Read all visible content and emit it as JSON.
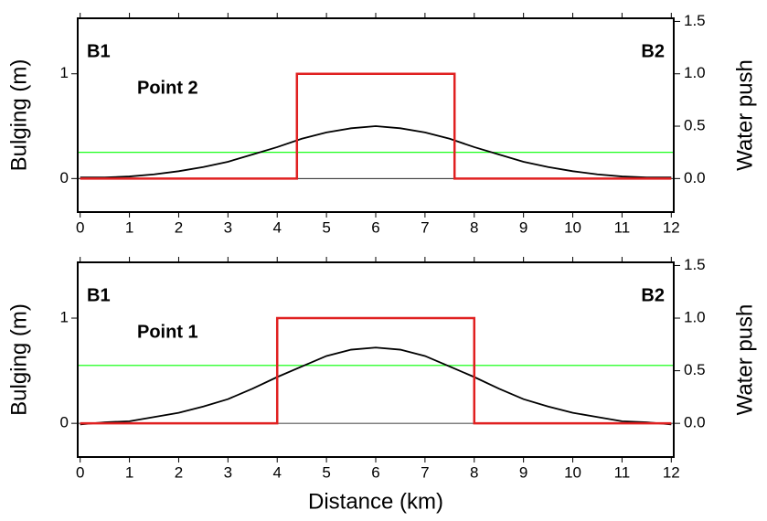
{
  "chart_data": [
    {
      "type": "line",
      "ylabel": "Bulging (m)",
      "y2label": "Water push",
      "annotations": [
        "B1",
        "B2",
        "Point 2"
      ],
      "xlim": [
        -0.05,
        12.05
      ],
      "xticks": [
        0,
        1,
        2,
        3,
        4,
        5,
        6,
        7,
        8,
        9,
        10,
        11,
        12
      ],
      "ylim": [
        -0.32,
        1.53
      ],
      "yticks": [
        0,
        1
      ],
      "y2lim": [
        -0.32,
        1.53
      ],
      "y2ticks": [
        {
          "value": 0,
          "label": "0.0"
        },
        {
          "value": 0.5,
          "label": "0.5"
        },
        {
          "value": 1,
          "label": "1.0"
        },
        {
          "value": 1.5,
          "label": "1.5"
        }
      ],
      "hline": {
        "value": 0.25,
        "color": "#00ff00",
        "axis": "y2"
      },
      "series": [
        {
          "color": "#000000",
          "x": [
            0,
            0.5,
            1,
            1.5,
            2,
            2.5,
            3,
            3.5,
            4,
            4.5,
            5,
            5.5,
            6,
            6.5,
            7,
            7.5,
            8,
            8.5,
            9,
            9.5,
            10,
            10.5,
            11,
            11.5,
            12
          ],
          "values": [
            0.01,
            0.01,
            0.02,
            0.04,
            0.07,
            0.11,
            0.16,
            0.23,
            0.3,
            0.38,
            0.44,
            0.48,
            0.5,
            0.48,
            0.44,
            0.38,
            0.3,
            0.23,
            0.16,
            0.11,
            0.07,
            0.04,
            0.02,
            0.01,
            0.01
          ]
        },
        {
          "color": "#e02020",
          "axis": "y2",
          "x": [
            0,
            4.4,
            4.4,
            7.6,
            7.6,
            12
          ],
          "values": [
            0,
            0,
            1,
            1,
            0,
            0
          ]
        }
      ]
    },
    {
      "type": "line",
      "ylabel": "Bulging (m)",
      "y2label": "Water push",
      "xlabel": "Distance (km)",
      "annotations": [
        "B1",
        "B2",
        "Point 1"
      ],
      "xlim": [
        -0.05,
        12.05
      ],
      "xticks": [
        0,
        1,
        2,
        3,
        4,
        5,
        6,
        7,
        8,
        9,
        10,
        11,
        12
      ],
      "ylim": [
        -0.32,
        1.53
      ],
      "yticks": [
        0,
        1
      ],
      "y2lim": [
        -0.32,
        1.53
      ],
      "y2ticks": [
        {
          "value": 0,
          "label": "0.0"
        },
        {
          "value": 0.5,
          "label": "0.5"
        },
        {
          "value": 1,
          "label": "1.0"
        },
        {
          "value": 1.5,
          "label": "1.5"
        }
      ],
      "hline": {
        "value": 0.55,
        "color": "#00ff00",
        "axis": "y2"
      },
      "series": [
        {
          "color": "#000000",
          "x": [
            0,
            0.5,
            1,
            1.5,
            2,
            2.5,
            3,
            3.5,
            4,
            4.5,
            5,
            5.5,
            6,
            6.5,
            7,
            7.5,
            8,
            8.5,
            9,
            9.5,
            10,
            10.5,
            11,
            11.5,
            12
          ],
          "values": [
            -0.01,
            0.01,
            0.02,
            0.06,
            0.1,
            0.16,
            0.23,
            0.33,
            0.44,
            0.54,
            0.64,
            0.7,
            0.72,
            0.7,
            0.64,
            0.54,
            0.44,
            0.33,
            0.23,
            0.16,
            0.1,
            0.06,
            0.02,
            0.01,
            -0.01
          ]
        },
        {
          "color": "#e02020",
          "axis": "y2",
          "x": [
            0,
            4,
            4,
            8,
            8,
            12
          ],
          "values": [
            0,
            0,
            1,
            1,
            0,
            0
          ]
        }
      ]
    }
  ]
}
